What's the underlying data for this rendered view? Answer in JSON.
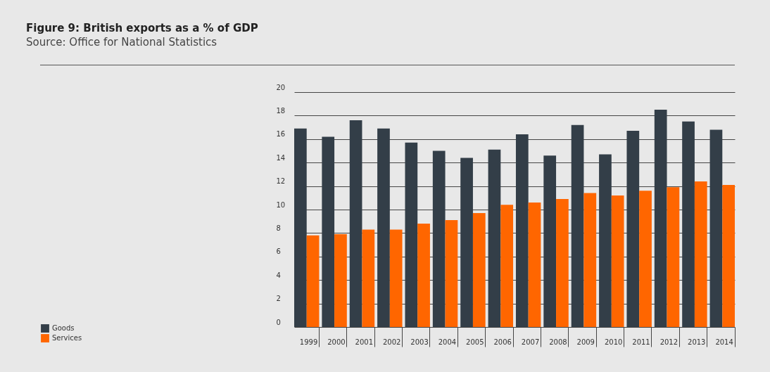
{
  "chart_data": {
    "type": "bar",
    "title": "Figure 9: British exports as a % of GDP",
    "annotations": [
      "Source: Office for National Statistics"
    ],
    "categories": [
      "1999",
      "2000",
      "2001",
      "2002",
      "2003",
      "2004",
      "2005",
      "2006",
      "2007",
      "2008",
      "2009",
      "2010",
      "2011",
      "2012",
      "2013",
      "2014"
    ],
    "series": [
      {
        "name": "Goods",
        "color": "#333e48",
        "values": [
          16.9,
          16.2,
          17.6,
          16.9,
          15.7,
          15.0,
          14.4,
          15.1,
          16.4,
          14.6,
          17.2,
          14.7,
          16.7,
          18.5,
          17.5,
          16.8
        ]
      },
      {
        "name": "Services",
        "color": "#ff6600",
        "values": [
          7.8,
          7.9,
          8.3,
          8.3,
          8.8,
          9.1,
          9.7,
          10.4,
          10.6,
          10.9,
          11.4,
          11.2,
          11.6,
          11.9,
          12.4,
          12.1
        ]
      }
    ],
    "ylim": [
      0,
      20
    ],
    "yticks": [
      0,
      2,
      4,
      6,
      8,
      10,
      12,
      14,
      16,
      18,
      20
    ],
    "grid": "y",
    "legend": "bottom left"
  }
}
